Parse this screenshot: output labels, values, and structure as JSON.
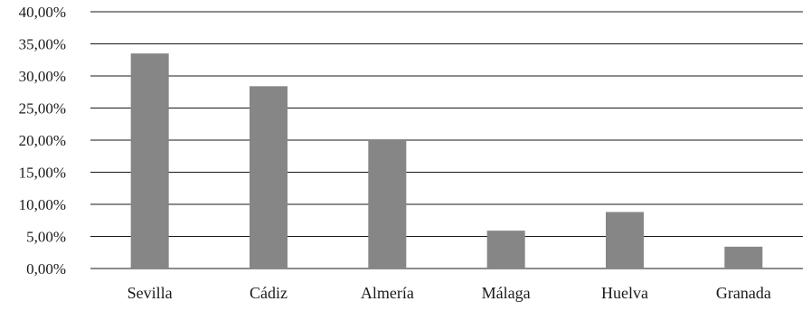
{
  "chart_data": {
    "type": "bar",
    "categories": [
      "Sevilla",
      "Cádiz",
      "Almería",
      "Málaga",
      "Huelva",
      "Granada"
    ],
    "values": [
      33.5,
      28.4,
      20.0,
      5.9,
      8.8,
      3.4
    ],
    "ylim": [
      0,
      40
    ],
    "yticks": [
      "0,00%",
      "5,00%",
      "10,00%",
      "15,00%",
      "20,00%",
      "25,00%",
      "30,00%",
      "35,00%",
      "40,00%"
    ],
    "grid": true,
    "legend": "none",
    "bar_color": "#868686"
  }
}
